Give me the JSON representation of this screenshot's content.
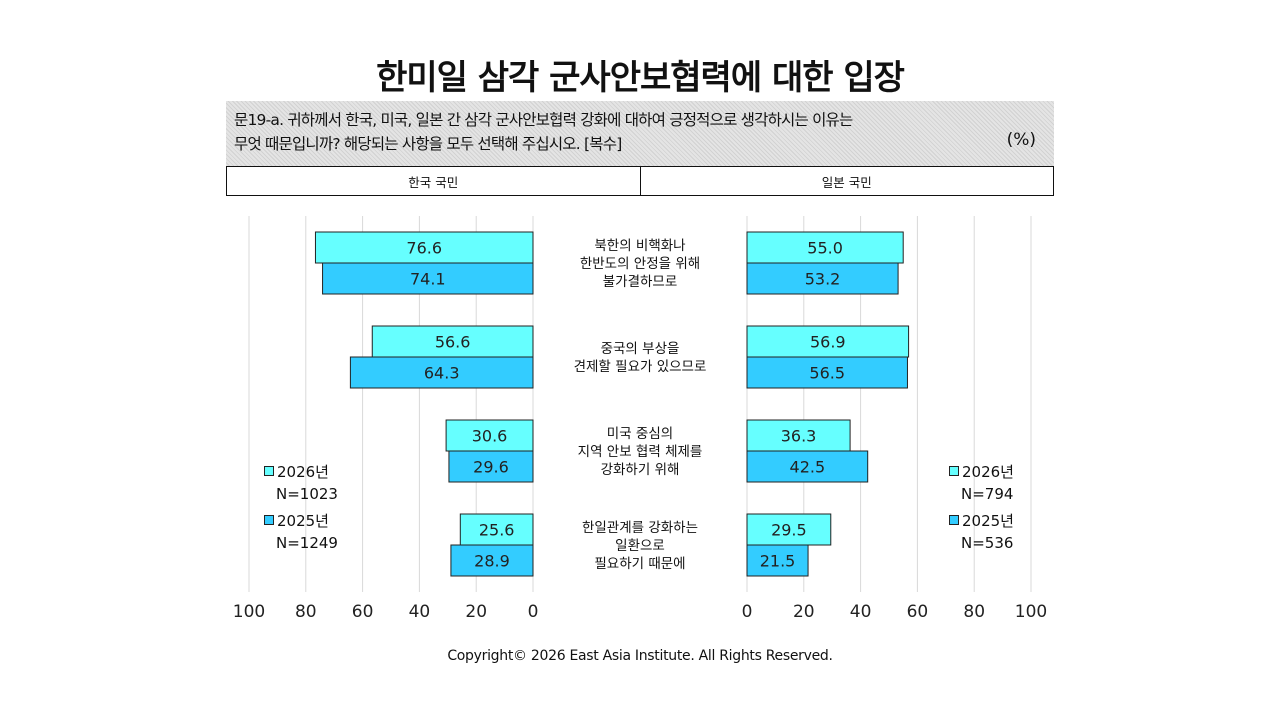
{
  "title": "한미일 삼각 군사안보협력에 대한 입장",
  "question": {
    "line1": "문19-a. 귀하께서 한국, 미국, 일본 간 삼각 군사안보협력 강화에 대하여  긍정적으로 생각하시는 이유는",
    "line2": "무엇 때문입니까? 해당되는 사항을 모두 선택해 주십시오. [복수]",
    "unit": "(%)"
  },
  "headers": {
    "left": "한국 국민",
    "right": "일본 국민"
  },
  "legend": {
    "left": [
      {
        "year": "2026년",
        "n": "N=1023"
      },
      {
        "year": "2025년",
        "n": "N=1249"
      }
    ],
    "right": [
      {
        "year": "2026년",
        "n": "N=794"
      },
      {
        "year": "2025년",
        "n": "N=536"
      }
    ]
  },
  "colors": {
    "series_2026": "#66ffff",
    "series_2025": "#33ccff",
    "grid": "#d9d9d9",
    "bar_border": "#222222"
  },
  "chart_data": {
    "type": "bar",
    "orientation": "horizontal-butterfly",
    "categories": [
      "북한의 비핵화나\n한반도의 안정을 위해\n불가결하므로",
      "중국의 부상을\n견제할 필요가 있으므로",
      "미국 중심의\n지역 안보 협력 체제를\n강화하기 위해",
      "한일관계를 강화하는\n일환으로\n필요하기 때문에"
    ],
    "panels": [
      {
        "name": "한국 국민",
        "series": [
          {
            "name": "2026년",
            "values": [
              76.6,
              56.6,
              30.6,
              25.6
            ]
          },
          {
            "name": "2025년",
            "values": [
              74.1,
              64.3,
              29.6,
              28.9
            ]
          }
        ]
      },
      {
        "name": "일본 국민",
        "series": [
          {
            "name": "2026년",
            "values": [
              55.0,
              56.9,
              36.3,
              29.5
            ]
          },
          {
            "name": "2025년",
            "values": [
              53.2,
              56.5,
              42.5,
              21.5
            ]
          }
        ]
      }
    ],
    "xlim": [
      0,
      100
    ],
    "xticks_left": [
      "100",
      "80",
      "60",
      "40",
      "20",
      "0"
    ],
    "xticks_right": [
      "0",
      "20",
      "40",
      "60",
      "80",
      "100"
    ],
    "grid": true
  },
  "footer": "Copyright© 2026 East Asia Institute. All Rights Reserved."
}
